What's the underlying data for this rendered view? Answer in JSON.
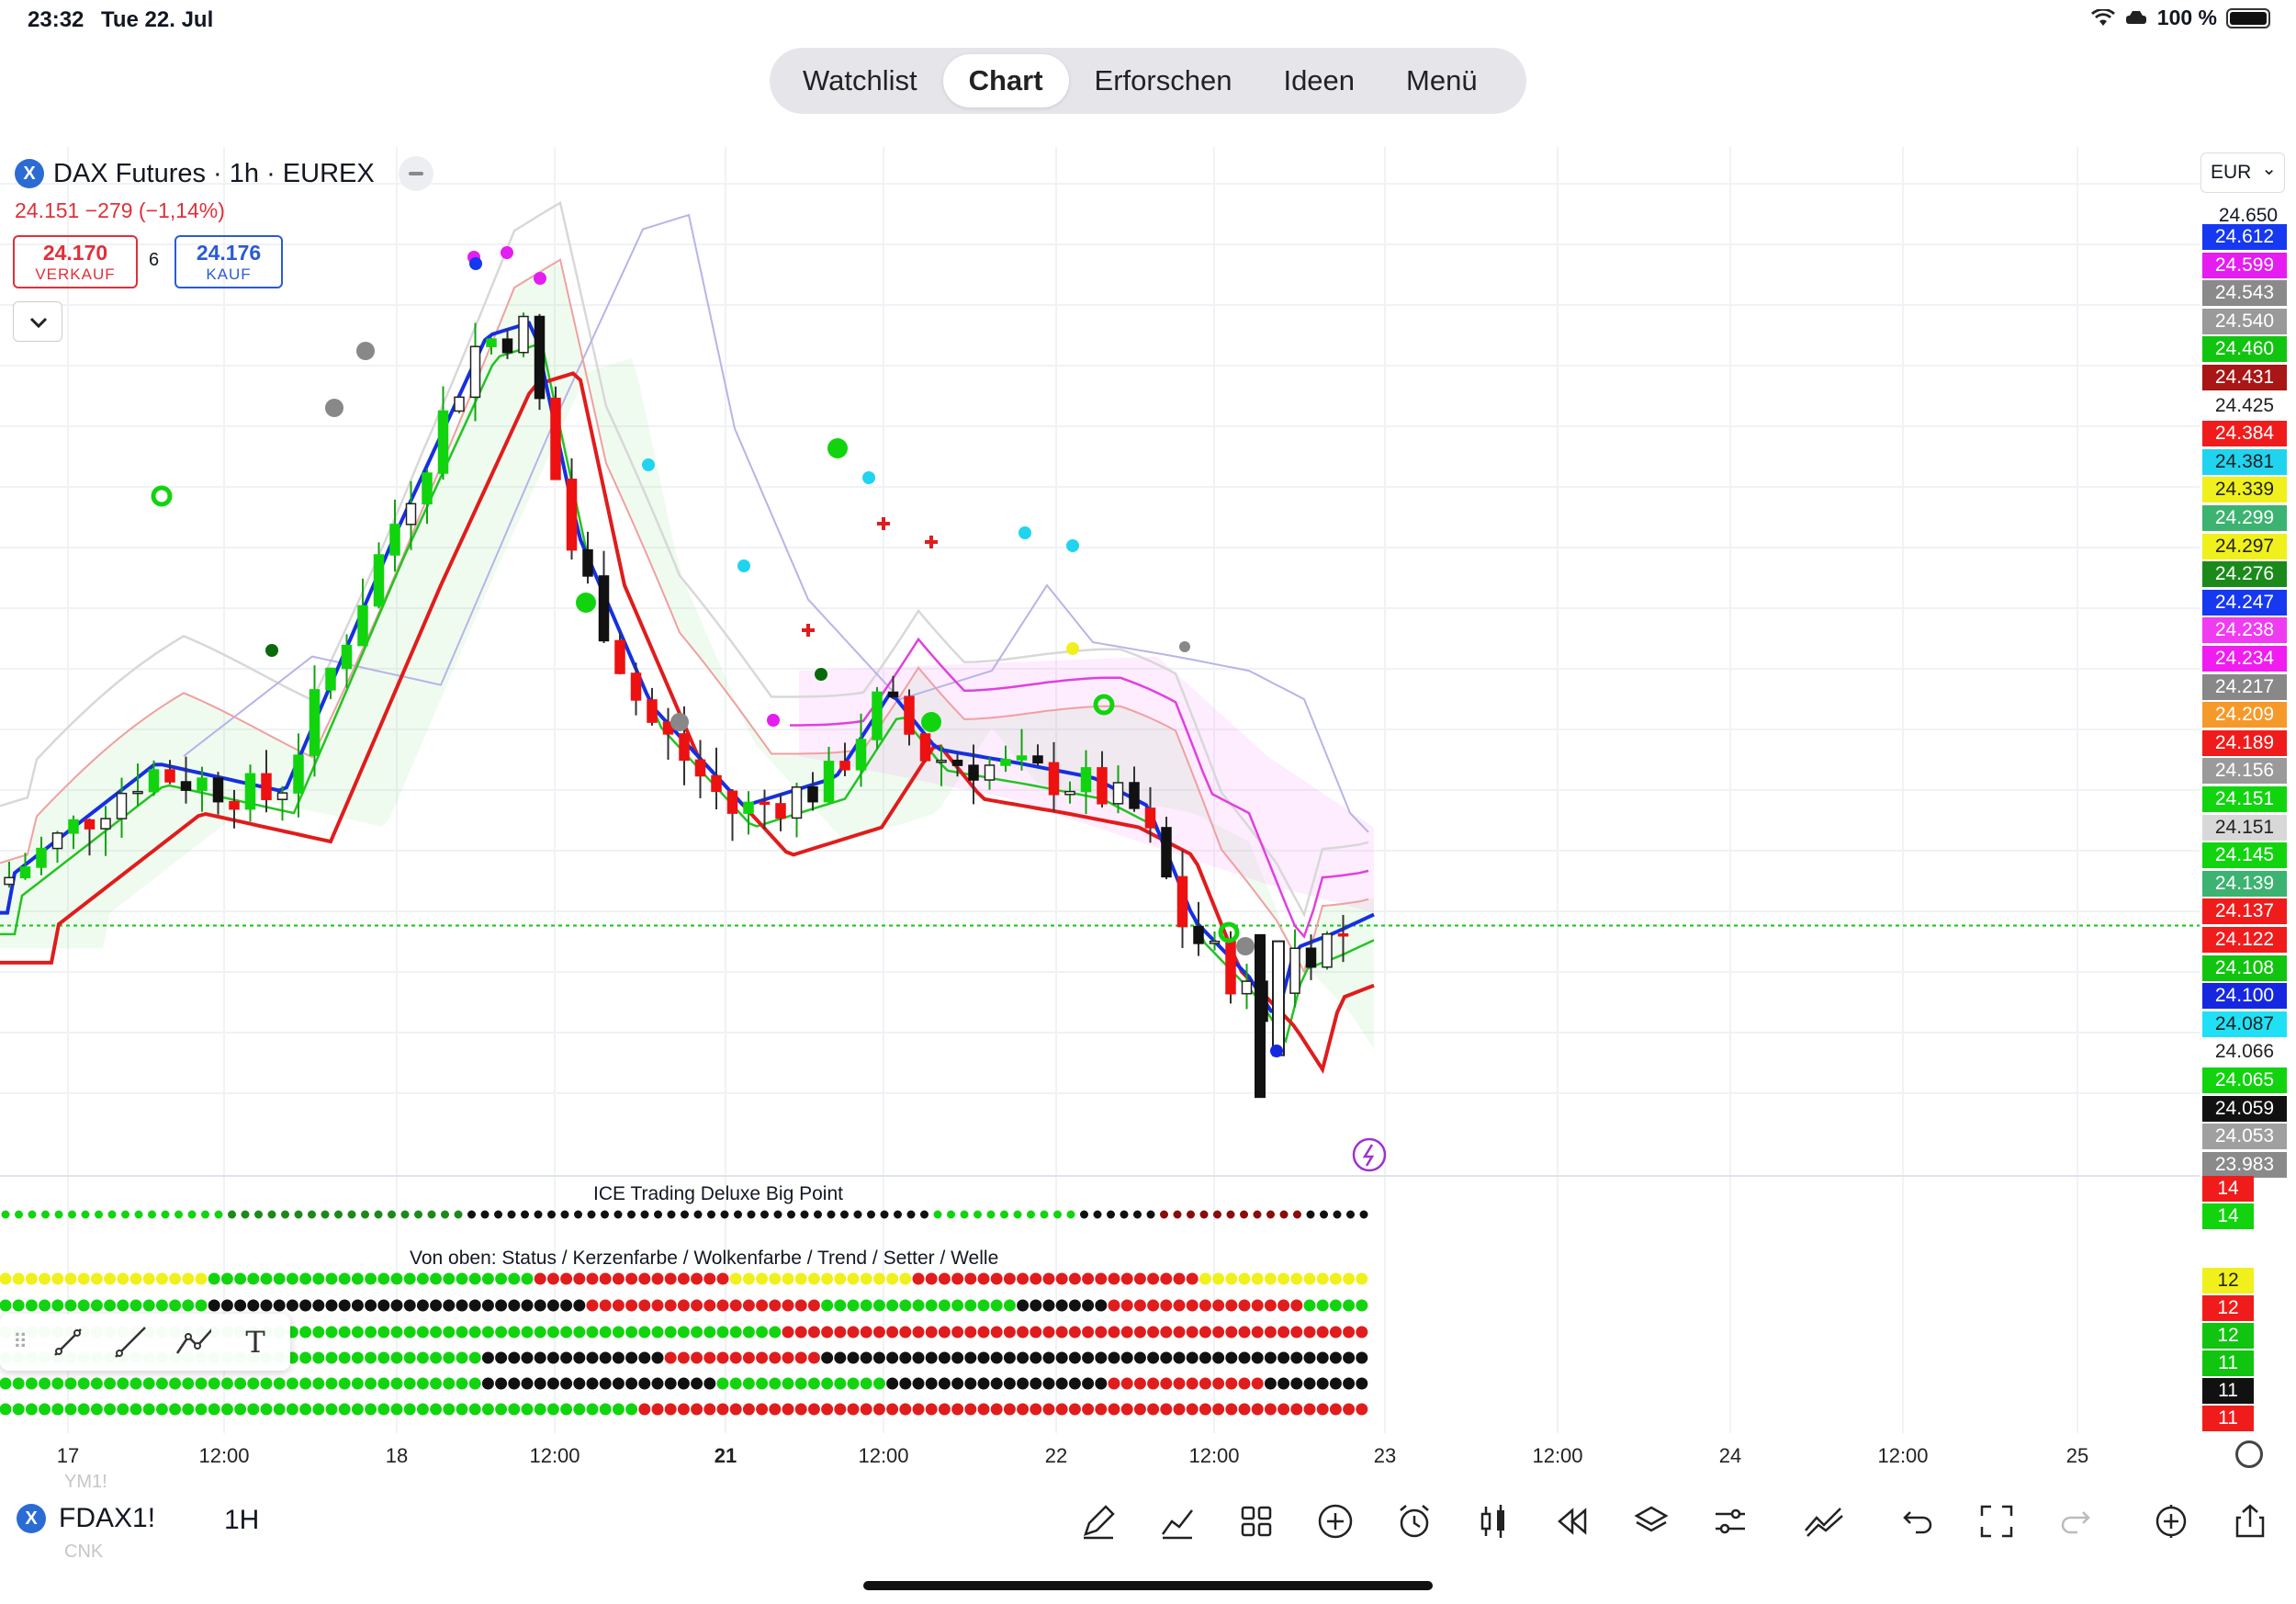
{
  "status_bar": {
    "time": "23:32",
    "date": "Tue 22. Jul",
    "battery": "100 %"
  },
  "top_tabs": [
    {
      "label": "Watchlist",
      "active": false
    },
    {
      "label": "Chart",
      "active": true
    },
    {
      "label": "Erforschen",
      "active": false
    },
    {
      "label": "Ideen",
      "active": false
    },
    {
      "label": "Menü",
      "active": false
    }
  ],
  "symbol": {
    "logo": "X",
    "title": "DAX Futures · 1h · EUREX",
    "change": "24.151  −279 (−1,14%)",
    "sell_price": "24.170",
    "sell_label": "VERKAUF",
    "spread": "6",
    "buy_price": "24.176",
    "buy_label": "KAUF"
  },
  "currency": "EUR",
  "price_axis": {
    "top_label": "24.650",
    "tags": [
      {
        "value": "24.612",
        "color": "#1538f0"
      },
      {
        "value": "24.599",
        "color": "#e51df0"
      },
      {
        "value": "24.543",
        "color": "#8a8a8a"
      },
      {
        "value": "24.540",
        "color": "#9a9a9a"
      },
      {
        "value": "24.460",
        "color": "#11c40f"
      },
      {
        "value": "24.431",
        "color": "#a81616"
      },
      {
        "value": "24.425",
        "color": "#ffffff"
      },
      {
        "value": "24.384",
        "color": "#f01c1c"
      },
      {
        "value": "24.381",
        "color": "#20d4f0"
      },
      {
        "value": "24.339",
        "color": "#f0f01c"
      },
      {
        "value": "24.299",
        "color": "#3cb371"
      },
      {
        "value": "24.297",
        "color": "#f0f01c"
      },
      {
        "value": "24.276",
        "color": "#1b8a1b"
      },
      {
        "value": "24.247",
        "color": "#1538f0"
      },
      {
        "value": "24.238",
        "color": "#f03cf0"
      },
      {
        "value": "24.234",
        "color": "#f01cf0"
      },
      {
        "value": "24.217",
        "color": "#888888"
      },
      {
        "value": "24.209",
        "color": "#f59a2a"
      },
      {
        "value": "24.189",
        "color": "#f01c1c"
      },
      {
        "value": "24.156",
        "color": "#9a9a9a"
      },
      {
        "value": "24.151",
        "color": "#11d40f"
      },
      {
        "value": "24.151",
        "color": "#d8d8d8"
      },
      {
        "value": "24.145",
        "color": "#11d40f"
      },
      {
        "value": "24.139",
        "color": "#3cb371"
      },
      {
        "value": "24.137",
        "color": "#f01c1c"
      },
      {
        "value": "24.122",
        "color": "#f01c1c"
      },
      {
        "value": "24.108",
        "color": "#11c40f"
      },
      {
        "value": "24.100",
        "color": "#1528e0"
      },
      {
        "value": "24.087",
        "color": "#20e0f5"
      },
      {
        "value": "24.066",
        "color": "#ffffff"
      },
      {
        "value": "24.065",
        "color": "#11d40f"
      },
      {
        "value": "24.059",
        "color": "#111111"
      },
      {
        "value": "24.053",
        "color": "#a0a0a0"
      },
      {
        "value": "23.983",
        "color": "#8a8a8a"
      }
    ],
    "indicator_tags": [
      {
        "value": "14",
        "color": "#f01c1c"
      },
      {
        "value": "14",
        "color": "#11d40f"
      },
      {
        "value": "12",
        "color": "#f0f01c"
      },
      {
        "value": "12",
        "color": "#f01c1c"
      },
      {
        "value": "12",
        "color": "#11c40f"
      },
      {
        "value": "11",
        "color": "#11c40f"
      },
      {
        "value": "11",
        "color": "#111111"
      },
      {
        "value": "11",
        "color": "#f01c1c"
      }
    ]
  },
  "chart_data": {
    "type": "candlestick",
    "title": "DAX Futures · 1h · EUREX",
    "last_price": 24151,
    "ylim": [
      23983,
      24650
    ],
    "x_ticks": [
      "17",
      "12:00",
      "18",
      "12:00",
      "21",
      "12:00",
      "22",
      "12:00",
      "23",
      "12:00",
      "24",
      "12:00",
      "25"
    ]
  },
  "indicator": {
    "title": "ICE Trading Deluxe Big Point",
    "subtitle": "Von oben: Status / Kerzenfarbe / Wolkenfarbe / Trend / Setter / Welle"
  },
  "drawing_tools": [
    "trend-line-tool",
    "ray-tool",
    "path-tool",
    "text-tool"
  ],
  "drawing_text_label": "T",
  "bottom_bar": {
    "symbol": "FDAX1!",
    "logo": "X",
    "timeframe": "1H",
    "ghost_top": "YM1!",
    "ghost_bottom": "CNK"
  }
}
